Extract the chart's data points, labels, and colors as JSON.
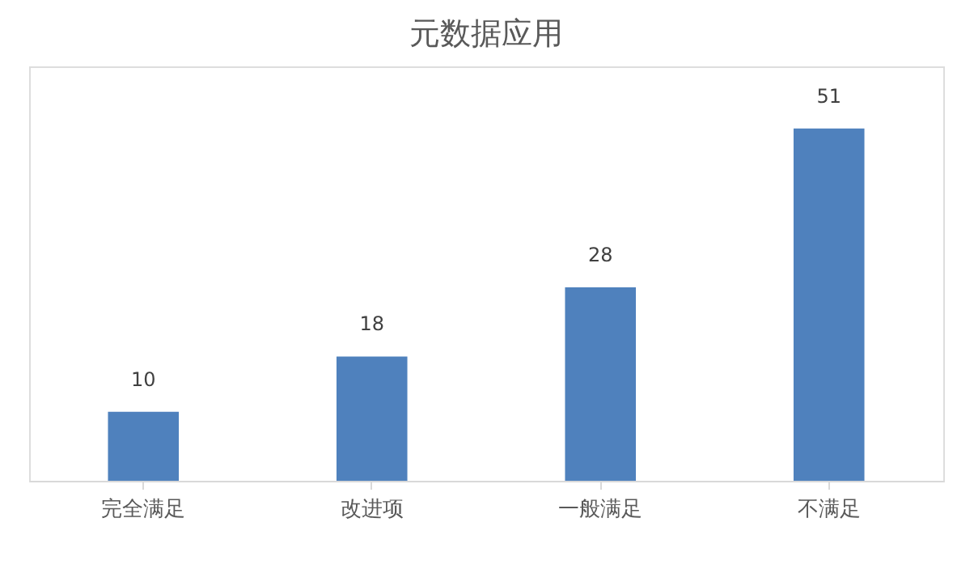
{
  "chart_data": {
    "type": "bar",
    "title": "元数据应用",
    "categories": [
      "完全满足",
      "改进项",
      "一般满足",
      "不满足"
    ],
    "values": [
      10,
      18,
      28,
      51
    ],
    "color": "#4f81bd",
    "ylim": [
      0,
      60
    ],
    "tick_labels": "x",
    "data_labels": true,
    "grid": false
  }
}
